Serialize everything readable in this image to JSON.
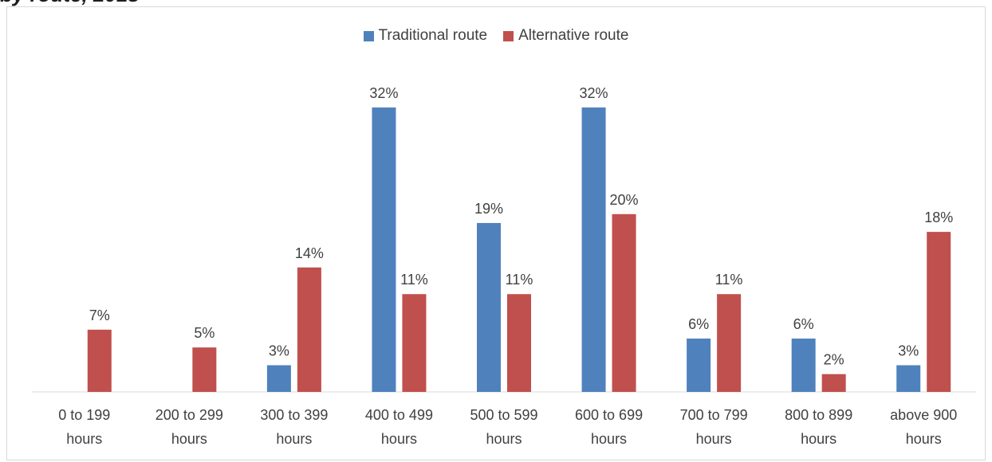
{
  "clipped_title": "by route, 2018",
  "colors": {
    "traditional": "#4F81BD",
    "alternative": "#C0504D",
    "axis": "#d9d9d9",
    "text": "#404040"
  },
  "chart_data": {
    "type": "bar",
    "title": "",
    "xlabel": "",
    "ylabel": "",
    "ylim": [
      0,
      35
    ],
    "grid": false,
    "legend_position": "top-center",
    "categories": [
      [
        "0 to 199",
        "hours"
      ],
      [
        "200 to 299",
        "hours"
      ],
      [
        "300 to 399",
        "hours"
      ],
      [
        "400 to 499",
        "hours"
      ],
      [
        "500 to 599",
        "hours"
      ],
      [
        "600 to 699",
        "hours"
      ],
      [
        "700 to 799",
        "hours"
      ],
      [
        "800 to 899",
        "hours"
      ],
      [
        "above 900",
        "hours"
      ]
    ],
    "series": [
      {
        "name": "Traditional route",
        "values": [
          null,
          null,
          3,
          32,
          19,
          32,
          6,
          6,
          3
        ],
        "unit": "%"
      },
      {
        "name": "Alternative route",
        "values": [
          7,
          5,
          14,
          11,
          11,
          20,
          11,
          2,
          18
        ],
        "unit": "%"
      }
    ]
  }
}
